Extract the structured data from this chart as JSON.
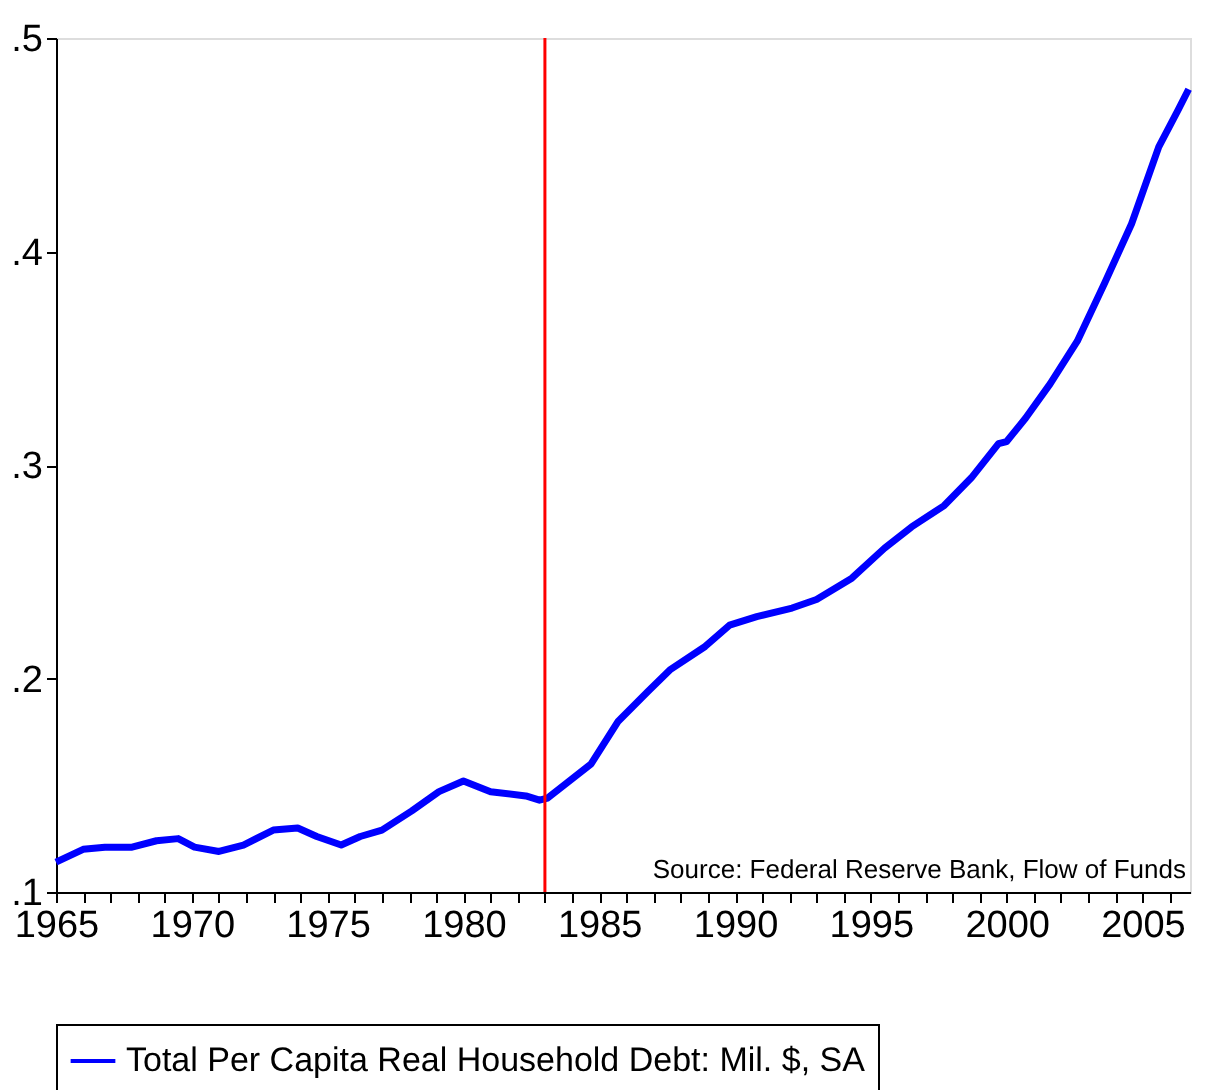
{
  "chart_data": {
    "type": "line",
    "x": [
      1965.0,
      1966.0,
      1966.8,
      1967.8,
      1968.7,
      1969.5,
      1970.1,
      1971.0,
      1971.9,
      1973.0,
      1973.9,
      1974.6,
      1975.5,
      1976.2,
      1977.0,
      1978.1,
      1979.1,
      1980.0,
      1981.0,
      1982.3,
      1982.8,
      1983.1,
      1983.7,
      1984.7,
      1985.7,
      1986.8,
      1987.6,
      1988.9,
      1989.8,
      1990.8,
      1992.1,
      1993.0,
      1994.3,
      1995.5,
      1996.5,
      1997.7,
      1998.7,
      1999.7,
      2000.0,
      2000.7,
      2001.6,
      2002.6,
      2003.6,
      2004.6,
      2005.6,
      2006.3,
      2006.7
    ],
    "series": [
      {
        "name": "Total Per Capita Real Household Debt: Mil. $, SA",
        "color": "#0000ff",
        "values": [
          0.114,
          0.12,
          0.121,
          0.121,
          0.124,
          0.125,
          0.121,
          0.119,
          0.122,
          0.129,
          0.13,
          0.126,
          0.122,
          0.126,
          0.129,
          0.138,
          0.147,
          0.152,
          0.147,
          0.145,
          0.143,
          0.144,
          0.15,
          0.16,
          0.18,
          0.194,
          0.204,
          0.215,
          0.225,
          0.229,
          0.233,
          0.237,
          0.247,
          0.261,
          0.271,
          0.281,
          0.294,
          0.31,
          0.311,
          0.322,
          0.338,
          0.358,
          0.385,
          0.413,
          0.449,
          0.466,
          0.476
        ]
      }
    ],
    "xlim": [
      1965,
      2006.75
    ],
    "xticks": [
      1965,
      {
        "value": 1966,
        "label": null
      },
      {
        "value": 1967,
        "label": null
      },
      {
        "value": 1968,
        "label": null
      },
      {
        "value": 1969,
        "label": null
      },
      1970,
      {
        "value": 1971,
        "label": null
      },
      {
        "value": 1972,
        "label": null
      },
      {
        "value": 1973,
        "label": null
      },
      {
        "value": 1974,
        "label": null
      },
      1975,
      {
        "value": 1976,
        "label": null
      },
      {
        "value": 1977,
        "label": null
      },
      {
        "value": 1978,
        "label": null
      },
      {
        "value": 1979,
        "label": null
      },
      1980,
      {
        "value": 1981,
        "label": null
      },
      {
        "value": 1982,
        "label": null
      },
      {
        "value": 1983,
        "label": null
      },
      {
        "value": 1984,
        "label": null
      },
      1985,
      {
        "value": 1986,
        "label": null
      },
      {
        "value": 1987,
        "label": null
      },
      {
        "value": 1988,
        "label": null
      },
      {
        "value": 1989,
        "label": null
      },
      1990,
      {
        "value": 1991,
        "label": null
      },
      {
        "value": 1992,
        "label": null
      },
      {
        "value": 1993,
        "label": null
      },
      {
        "value": 1994,
        "label": null
      },
      1995,
      {
        "value": 1996,
        "label": null
      },
      {
        "value": 1997,
        "label": null
      },
      {
        "value": 1998,
        "label": null
      },
      {
        "value": 1999,
        "label": null
      },
      2000,
      {
        "value": 2001,
        "label": null
      },
      {
        "value": 2002,
        "label": null
      },
      {
        "value": 2003,
        "label": null
      },
      {
        "value": 2004,
        "label": null
      },
      2005,
      {
        "value": 2006,
        "label": null
      }
    ],
    "ylim": [
      0.1,
      0.5
    ],
    "yticks": [
      {
        "value": 0.1,
        "label": ".1"
      },
      {
        "value": 0.2,
        "label": ".2"
      },
      {
        "value": 0.3,
        "label": ".3"
      },
      {
        "value": 0.4,
        "label": ".4"
      },
      {
        "value": 0.5,
        "label": ".5"
      }
    ],
    "ref_lines": [
      {
        "axis": "x",
        "value": 1983,
        "color": "#ff0000"
      }
    ],
    "annotations": [
      "Source: Federal Reserve Bank, Flow of Funds"
    ],
    "legend": "bottom",
    "grid": false,
    "marker": "none",
    "line_style": "solid"
  }
}
